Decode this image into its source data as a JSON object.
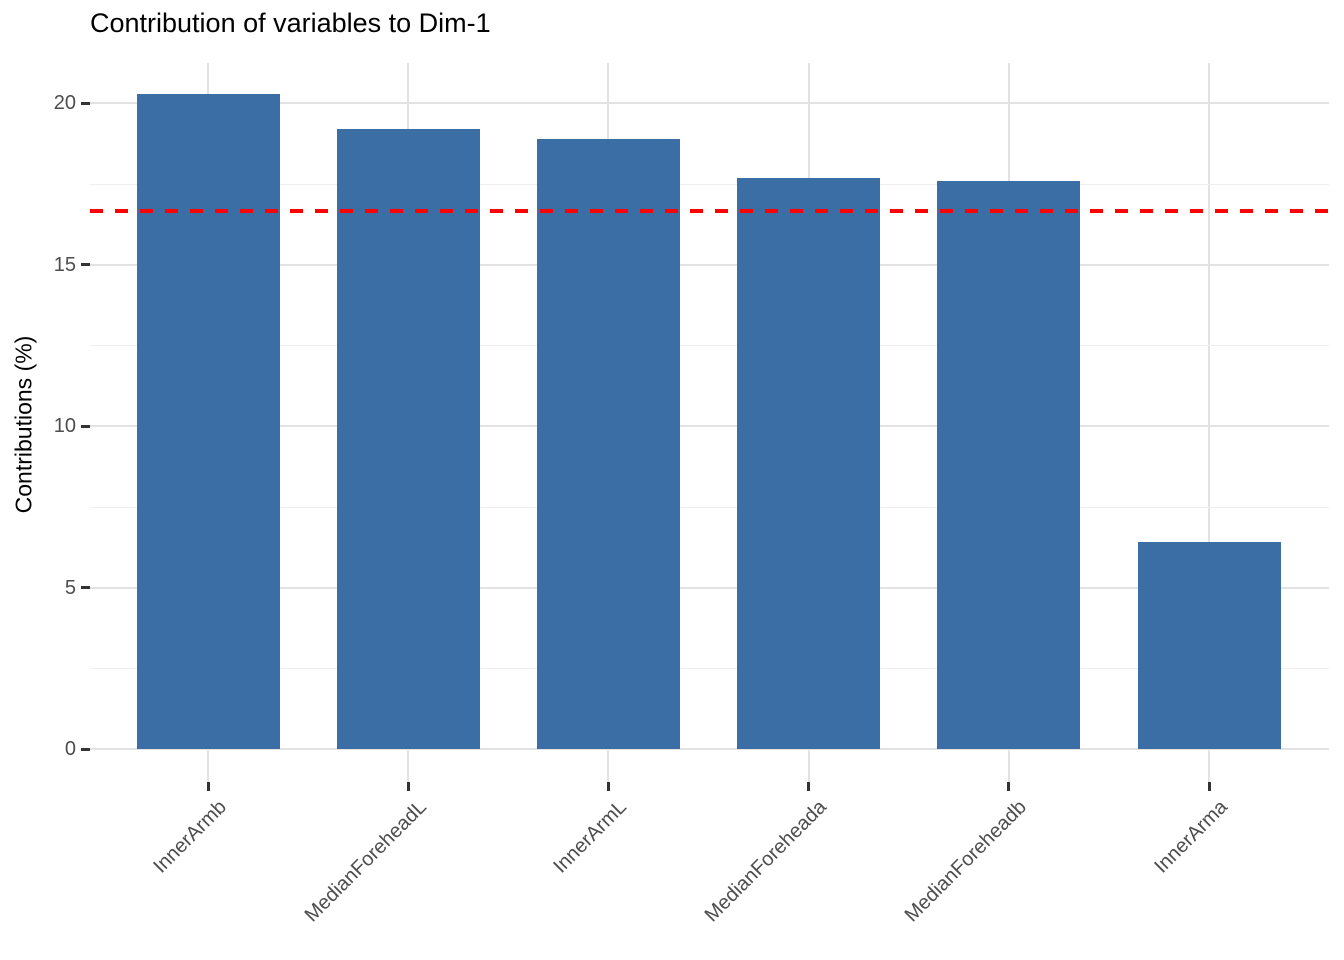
{
  "chart_data": {
    "type": "bar",
    "title": "Contribution of variables to Dim-1",
    "xlabel": "",
    "ylabel": "Contributions (%)",
    "categories": [
      "InnerArmb",
      "MedianForeheadL",
      "InnerArmL",
      "MedianForeheada",
      "MedianForeheadb",
      "InnerArma"
    ],
    "values": [
      20.3,
      19.2,
      18.9,
      17.7,
      17.6,
      6.4
    ],
    "reference_line_value": 16.67,
    "y_ticks": [
      0,
      5,
      10,
      15,
      20
    ],
    "y_minor_ticks": [
      2.5,
      7.5,
      12.5,
      17.5
    ],
    "ylim": [
      0,
      20.3
    ],
    "x_labels_rotation_deg": 45,
    "grid": "major and minor horizontal, vertical at bar centers",
    "legend_position": "none",
    "colors": {
      "bar_fill": "#3A6EA5",
      "reference_line": "#FF0000",
      "grid_major": "#e2e2e2",
      "grid_minor": "#efefef",
      "tick_mark": "#333333",
      "tick_text": "#4d4d4d",
      "title_text": "#000000"
    }
  }
}
